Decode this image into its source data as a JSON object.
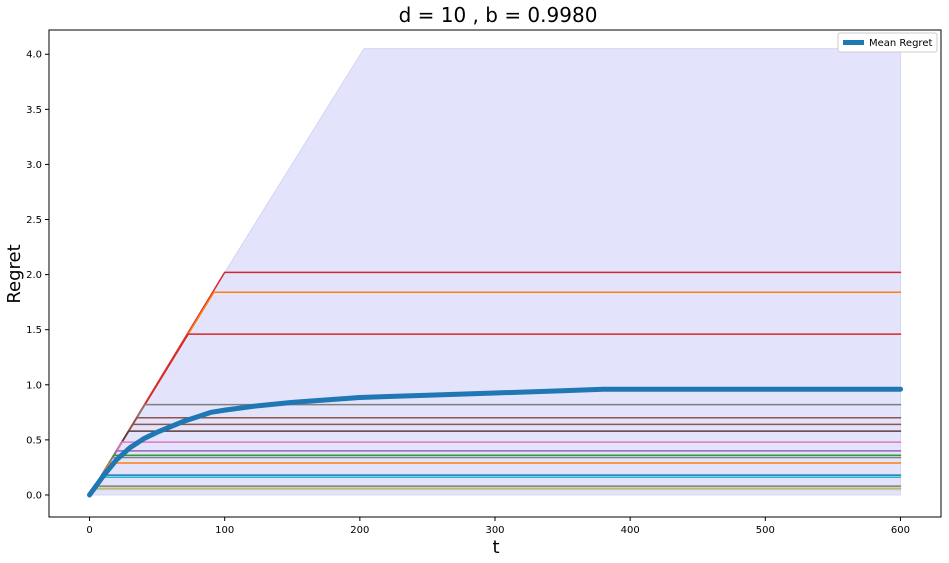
{
  "chart_data": {
    "type": "line",
    "title": "d = 10 , b = 0.9980",
    "xlabel": "t",
    "ylabel": "Regret",
    "xlim": [
      -30,
      630
    ],
    "ylim": [
      -0.2,
      4.22
    ],
    "xticks": [
      0,
      100,
      200,
      300,
      400,
      500,
      600
    ],
    "yticks": [
      0.0,
      0.5,
      1.0,
      1.5,
      2.0,
      2.5,
      3.0,
      3.5,
      4.0
    ],
    "xtick_labels": [
      "0",
      "100",
      "200",
      "300",
      "400",
      "500",
      "600"
    ],
    "ytick_labels": [
      "0.0",
      "0.5",
      "1.0",
      "1.5",
      "2.0",
      "2.5",
      "3.0",
      "3.5",
      "4.0"
    ],
    "grid": false,
    "legend": {
      "position": "top-right",
      "entries": [
        "Mean Regret"
      ]
    },
    "band": {
      "color": "#e3e3fb",
      "upper": [
        [
          0,
          0
        ],
        [
          100,
          2.02
        ],
        [
          203,
          4.05
        ],
        [
          600,
          4.05
        ]
      ],
      "lower": [
        [
          0,
          0
        ],
        [
          600,
          0
        ]
      ]
    },
    "series": [
      {
        "color": "#d62728",
        "values": [
          [
            0,
            0
          ],
          [
            100,
            2.02
          ],
          [
            600,
            2.02
          ]
        ]
      },
      {
        "color": "#ff7f0e",
        "values": [
          [
            0,
            0
          ],
          [
            92,
            1.84
          ],
          [
            600,
            1.84
          ]
        ]
      },
      {
        "color": "#d62728",
        "values": [
          [
            0,
            0
          ],
          [
            73,
            1.46
          ],
          [
            600,
            1.46
          ]
        ]
      },
      {
        "color": "#7f7f7f",
        "values": [
          [
            0,
            0
          ],
          [
            41,
            0.82
          ],
          [
            600,
            0.82
          ]
        ]
      },
      {
        "color": "#8c564b",
        "values": [
          [
            0,
            0
          ],
          [
            35,
            0.7
          ],
          [
            600,
            0.7
          ]
        ]
      },
      {
        "color": "#8c564b",
        "values": [
          [
            0,
            0
          ],
          [
            32,
            0.64
          ],
          [
            600,
            0.64
          ]
        ]
      },
      {
        "color": "#5c3c3c",
        "values": [
          [
            0,
            0
          ],
          [
            29,
            0.58
          ],
          [
            600,
            0.58
          ]
        ]
      },
      {
        "color": "#e377c2",
        "values": [
          [
            0,
            0
          ],
          [
            24,
            0.48
          ],
          [
            600,
            0.48
          ]
        ]
      },
      {
        "color": "#9467bd",
        "values": [
          [
            0,
            0
          ],
          [
            20,
            0.4
          ],
          [
            600,
            0.4
          ]
        ]
      },
      {
        "color": "#2ca02c",
        "values": [
          [
            0,
            0
          ],
          [
            18,
            0.36
          ],
          [
            600,
            0.36
          ]
        ]
      },
      {
        "color": "#7f7f7f",
        "values": [
          [
            0,
            0
          ],
          [
            17,
            0.34
          ],
          [
            600,
            0.34
          ]
        ]
      },
      {
        "color": "#ff7f0e",
        "values": [
          [
            0,
            0
          ],
          [
            15,
            0.29
          ],
          [
            600,
            0.29
          ]
        ]
      },
      {
        "color": "#1f77b4",
        "values": [
          [
            0,
            0
          ],
          [
            9,
            0.18
          ],
          [
            600,
            0.18
          ]
        ]
      },
      {
        "color": "#17becf",
        "values": [
          [
            0,
            0
          ],
          [
            8,
            0.16
          ],
          [
            600,
            0.16
          ]
        ]
      },
      {
        "color": "#7f7f7f",
        "values": [
          [
            0,
            0
          ],
          [
            4,
            0.08
          ],
          [
            600,
            0.08
          ]
        ]
      },
      {
        "color": "#bcbd22",
        "values": [
          [
            0,
            0
          ],
          [
            3,
            0.06
          ],
          [
            600,
            0.06
          ]
        ]
      },
      {
        "color": "#c7c7c7",
        "values": [
          [
            0,
            0
          ],
          [
            3,
            0.05
          ],
          [
            600,
            0.05
          ]
        ]
      },
      {
        "name": "Mean Regret",
        "color": "#1f77b4",
        "values": [
          [
            0,
            0
          ],
          [
            10,
            0.17
          ],
          [
            20,
            0.32
          ],
          [
            30,
            0.43
          ],
          [
            40,
            0.51
          ],
          [
            50,
            0.57
          ],
          [
            60,
            0.62
          ],
          [
            70,
            0.67
          ],
          [
            80,
            0.71
          ],
          [
            90,
            0.75
          ],
          [
            100,
            0.77
          ],
          [
            125,
            0.81
          ],
          [
            150,
            0.84
          ],
          [
            200,
            0.885
          ],
          [
            250,
            0.905
          ],
          [
            300,
            0.925
          ],
          [
            350,
            0.945
          ],
          [
            380,
            0.96
          ],
          [
            450,
            0.96
          ],
          [
            500,
            0.96
          ],
          [
            600,
            0.96
          ]
        ]
      }
    ]
  }
}
